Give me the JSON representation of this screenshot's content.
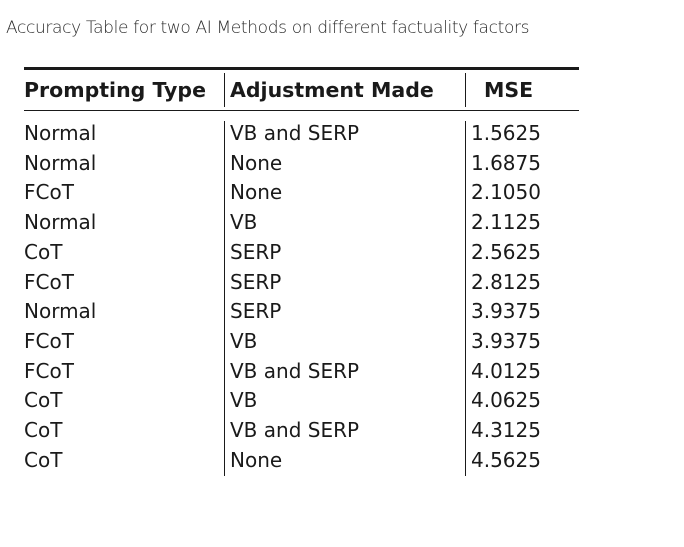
{
  "caption": "Accuracy Table for two AI Methods on different factuality factors",
  "table": {
    "headers": [
      "Prompting Type",
      "Adjustment Made",
      "MSE"
    ],
    "rows": [
      [
        "Normal",
        "VB and SERP",
        "1.5625"
      ],
      [
        "Normal",
        "None",
        "1.6875"
      ],
      [
        "FCoT",
        "None",
        "2.1050"
      ],
      [
        "Normal",
        "VB",
        "2.1125"
      ],
      [
        "CoT",
        "SERP",
        "2.5625"
      ],
      [
        "FCoT",
        "SERP",
        "2.8125"
      ],
      [
        "Normal",
        "SERP",
        "3.9375"
      ],
      [
        "FCoT",
        "VB",
        "3.9375"
      ],
      [
        "FCoT",
        "VB and SERP",
        "4.0125"
      ],
      [
        "CoT",
        "VB",
        "4.0625"
      ],
      [
        "CoT",
        "VB and SERP",
        "4.3125"
      ],
      [
        "CoT",
        "None",
        "4.5625"
      ]
    ]
  }
}
